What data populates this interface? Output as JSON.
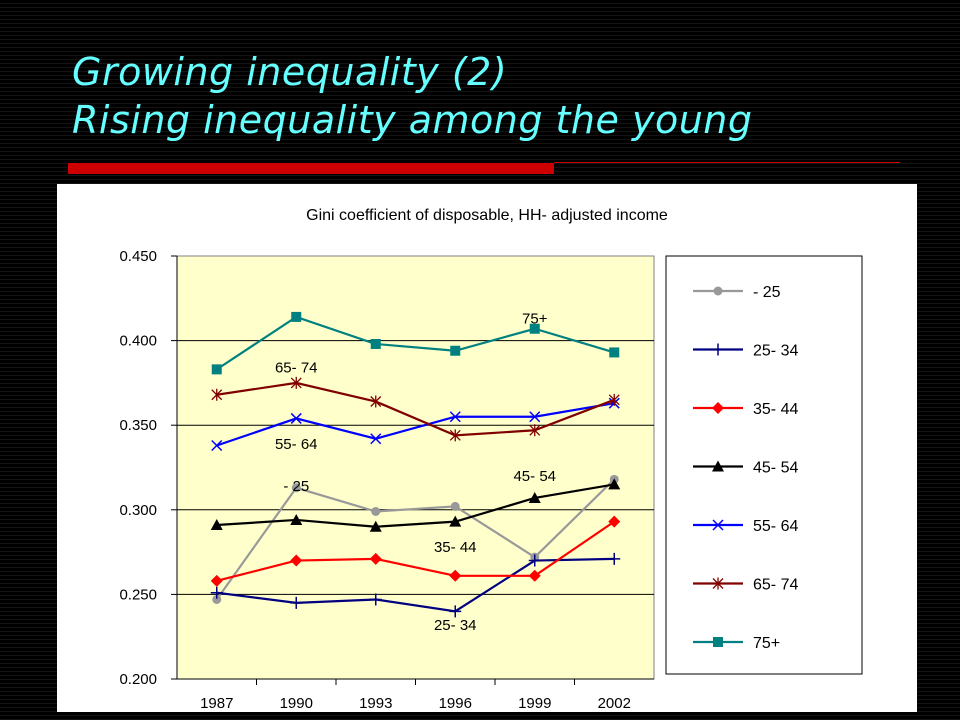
{
  "slide": {
    "title_line1": "Growing inequality (2)",
    "title_line2": "Rising inequality among the young",
    "title_color": "#66ffff",
    "accent_color": "#cc0000"
  },
  "chart_data": {
    "type": "line",
    "title": "Gini coefficient of disposable, HH- adjusted income",
    "xlabel": "",
    "ylabel": "",
    "categories": [
      "1987",
      "1990",
      "1993",
      "1996",
      "1999",
      "2002"
    ],
    "ylim": [
      0.2,
      0.45
    ],
    "yticks": [
      "0.450",
      "0.400",
      "0.350",
      "0.300",
      "0.250",
      "0.200"
    ],
    "plot_background": "#ffffcc",
    "grid": true,
    "legend_position": "right",
    "series": [
      {
        "name": "- 25",
        "values": [
          0.247,
          0.313,
          0.299,
          0.302,
          0.272,
          0.318
        ],
        "color": "#999999",
        "marker": "circle"
      },
      {
        "name": "25- 34",
        "values": [
          0.251,
          0.245,
          0.247,
          0.24,
          0.27,
          0.271
        ],
        "color": "#000080",
        "marker": "plus"
      },
      {
        "name": "35- 44",
        "values": [
          0.258,
          0.27,
          0.271,
          0.261,
          0.261,
          0.293
        ],
        "color": "#ff0000",
        "marker": "diamond"
      },
      {
        "name": "45- 54",
        "values": [
          0.291,
          0.294,
          0.29,
          0.293,
          0.307,
          0.315
        ],
        "color": "#000000",
        "marker": "triangle"
      },
      {
        "name": "55- 64",
        "values": [
          0.338,
          0.354,
          0.342,
          0.355,
          0.355,
          0.363
        ],
        "color": "#0000ff",
        "marker": "x"
      },
      {
        "name": "65- 74",
        "values": [
          0.368,
          0.375,
          0.364,
          0.344,
          0.347,
          0.365
        ],
        "color": "#800000",
        "marker": "star"
      },
      {
        "name": "75+",
        "values": [
          0.383,
          0.414,
          0.398,
          0.394,
          0.407,
          0.393
        ],
        "color": "#008080",
        "marker": "square"
      }
    ],
    "annotations": [
      {
        "text": "75+",
        "x": "1999",
        "y": 0.41
      },
      {
        "text": "65- 74",
        "x": "1990",
        "y": 0.381
      },
      {
        "text": "55- 64",
        "x": "1990",
        "y": 0.336
      },
      {
        "text": "- 25",
        "x": "1990",
        "y": 0.311
      },
      {
        "text": "45- 54",
        "x": "1999",
        "y": 0.317
      },
      {
        "text": "35- 44",
        "x": "1996",
        "y": 0.275
      },
      {
        "text": "25- 34",
        "x": "1996",
        "y": 0.229
      }
    ]
  }
}
